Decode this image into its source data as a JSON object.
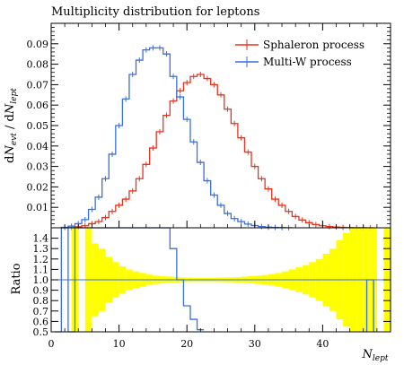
{
  "chart_data": {
    "type": "line",
    "title": "Multiplicity distribution for leptons",
    "main": {
      "ylabel": "dN_evt / dN_lept",
      "ylim": [
        0,
        0.1
      ],
      "yticks": [
        "0.01",
        "0.02",
        "0.03",
        "0.04",
        "0.05",
        "0.06",
        "0.07",
        "0.08",
        "0.09"
      ],
      "legend_position": "top-right",
      "series": [
        {
          "name": "Sphaleron process",
          "color": "#e8321e",
          "x": [
            3,
            4,
            5,
            6,
            7,
            8,
            9,
            10,
            11,
            12,
            13,
            14,
            15,
            16,
            17,
            18,
            19,
            20,
            21,
            22,
            23,
            24,
            25,
            26,
            27,
            28,
            29,
            30,
            31,
            32,
            33,
            34,
            35,
            36,
            37,
            38,
            39,
            40,
            41,
            42,
            43,
            44,
            45,
            46,
            47
          ],
          "y": [
            0.0001,
            0.0005,
            0.001,
            0.002,
            0.003,
            0.005,
            0.008,
            0.011,
            0.014,
            0.018,
            0.024,
            0.031,
            0.039,
            0.047,
            0.055,
            0.062,
            0.067,
            0.071,
            0.074,
            0.075,
            0.073,
            0.07,
            0.065,
            0.058,
            0.051,
            0.044,
            0.037,
            0.03,
            0.024,
            0.019,
            0.014,
            0.011,
            0.008,
            0.0055,
            0.0038,
            0.0025,
            0.0016,
            0.001,
            0.0006,
            0.0004,
            0.0002,
            0.0001,
            6e-05,
            3e-05,
            1e-05
          ]
        },
        {
          "name": "Multi-W process",
          "color": "#3a6fe0",
          "x": [
            2,
            3,
            4,
            5,
            6,
            7,
            8,
            9,
            10,
            11,
            12,
            13,
            14,
            15,
            16,
            17,
            18,
            19,
            20,
            21,
            22,
            23,
            24,
            25,
            26,
            27,
            28,
            29,
            30,
            31,
            32,
            33,
            34,
            35
          ],
          "y": [
            0.0002,
            0.0008,
            0.002,
            0.004,
            0.009,
            0.015,
            0.024,
            0.036,
            0.05,
            0.063,
            0.075,
            0.082,
            0.087,
            0.088,
            0.088,
            0.085,
            0.074,
            0.064,
            0.053,
            0.042,
            0.032,
            0.023,
            0.016,
            0.011,
            0.007,
            0.0045,
            0.003,
            0.0018,
            0.0011,
            0.0006,
            0.0003,
            0.0002,
            0.0001,
            5e-05
          ]
        }
      ]
    },
    "ratio": {
      "ylabel": "Ratio",
      "ylim": [
        0.5,
        1.5
      ],
      "yticks": [
        "0.5",
        "0.6",
        "0.7",
        "0.8",
        "0.9",
        "1.0",
        "1.1",
        "1.2",
        "1.3",
        "1.4"
      ],
      "reference": 1.0,
      "band_x": [
        0,
        1,
        2,
        3,
        4,
        5,
        6,
        7,
        8,
        9,
        10,
        11,
        12,
        13,
        14,
        15,
        16,
        17,
        18,
        19,
        20,
        21,
        22,
        23,
        24,
        25,
        26,
        27,
        28,
        29,
        30,
        31,
        32,
        33,
        34,
        35,
        36,
        37,
        38,
        39,
        40,
        41,
        42,
        43,
        44,
        45,
        46,
        47,
        48,
        49
      ],
      "band_halfwidth": [
        0,
        0,
        0,
        0.5,
        0,
        0.5,
        0.35,
        0.3,
        0.22,
        0.17,
        0.13,
        0.1,
        0.08,
        0.065,
        0.05,
        0.04,
        0.034,
        0.03,
        0.026,
        0.023,
        0.021,
        0.02,
        0.02,
        0.02,
        0.021,
        0.022,
        0.024,
        0.026,
        0.03,
        0.034,
        0.04,
        0.046,
        0.055,
        0.065,
        0.08,
        0.1,
        0.12,
        0.14,
        0.17,
        0.2,
        0.25,
        0.3,
        0.38,
        0.45,
        0.5,
        0.5,
        0.5,
        0.5,
        0,
        0.5
      ],
      "multiw_ratio_x": [
        1,
        2,
        3,
        4,
        5,
        6,
        7,
        8,
        9,
        10,
        11,
        12,
        13,
        14,
        15,
        16,
        17,
        18,
        19,
        20,
        21,
        22
      ],
      "multiw_ratio_y": [
        0.5,
        1.5,
        0.5,
        1.5,
        1.5,
        1.5,
        1.5,
        1.5,
        1.5,
        1.5,
        1.5,
        1.5,
        1.5,
        1.5,
        1.5,
        1.5,
        1.5,
        1.3,
        1.0,
        0.75,
        0.62,
        0.52
      ],
      "sphaleron_ratio_x": [
        47
      ],
      "sphaleron_ratio_y": [
        1.0
      ]
    },
    "xlabel": "N_lept",
    "xlim": [
      0,
      50
    ],
    "xticks": [
      "0",
      "10",
      "20",
      "30",
      "40"
    ]
  }
}
